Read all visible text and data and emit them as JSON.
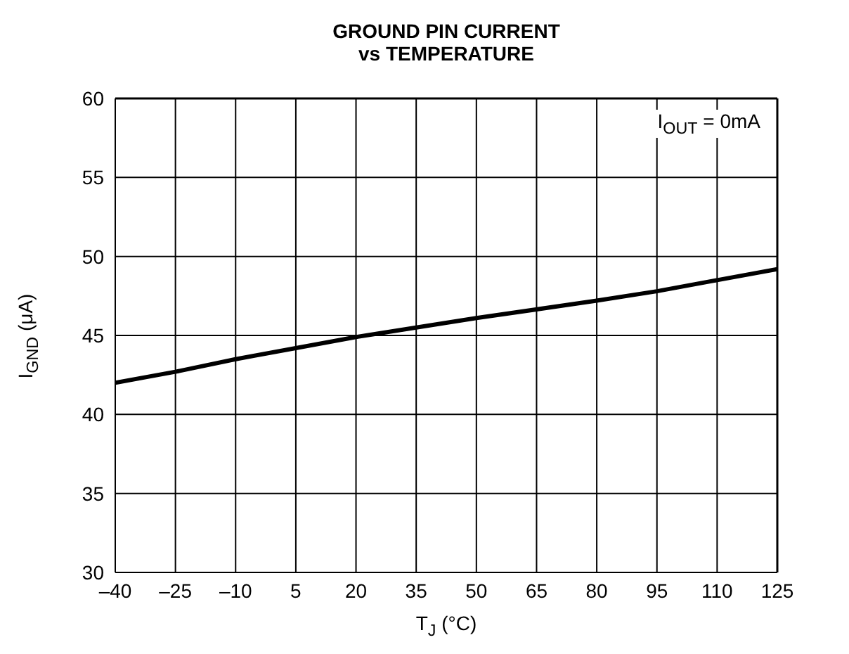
{
  "chart_data": {
    "type": "line",
    "title": "GROUND PIN CURRENT\nvs TEMPERATURE",
    "xlabel": "T$_{J}$ (°C)",
    "ylabel": "I$_{GND}$ (μA)",
    "annotations": [
      "I$_{OUT}$ = 0mA"
    ],
    "x": [
      -40,
      -25,
      -10,
      5,
      20,
      25,
      50,
      80,
      95,
      110,
      125
    ],
    "series": [
      {
        "color": "#000000",
        "values": [
          42.0,
          42.7,
          43.5,
          44.2,
          44.9,
          45.1,
          46.1,
          47.2,
          47.8,
          48.5,
          49.2
        ]
      }
    ],
    "xlim": [
      -40,
      125
    ],
    "xticks": [
      {
        "value": -40,
        "label": "–40"
      },
      {
        "value": -25,
        "label": "–25"
      },
      {
        "value": -10,
        "label": "–10"
      },
      5,
      20,
      35,
      50,
      65,
      80,
      95,
      110,
      125
    ],
    "ylim": [
      30,
      60
    ],
    "yticks": [
      30,
      35,
      40,
      45,
      50,
      55,
      60
    ],
    "grid": true,
    "marker": "none",
    "line_style": "solid"
  }
}
